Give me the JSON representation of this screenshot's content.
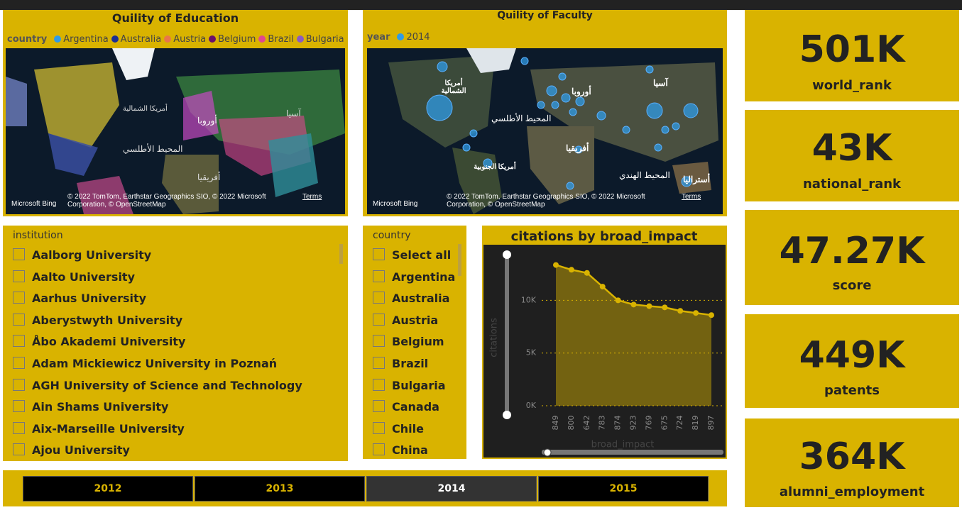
{
  "maps": [
    {
      "title": "Quility of Education",
      "legend_title": "country",
      "legend": [
        {
          "name": "Argentina",
          "color": "#2f9be6"
        },
        {
          "name": "Australia",
          "color": "#1c2f94"
        },
        {
          "name": "Austria",
          "color": "#e8764a"
        },
        {
          "name": "Belgium",
          "color": "#6b0f6b"
        },
        {
          "name": "Brazil",
          "color": "#e0488f"
        },
        {
          "name": "Bulgaria",
          "color": "#8a5cc2"
        }
      ],
      "labels": [
        "أمريكا الشمالية",
        "المحيط الأطلسي",
        "أوروبا",
        "آسيا",
        "أفريقيا"
      ],
      "attribution": "© 2022 TomTom, Earthstar Geographics SIO, © 2022 Microsoft Corporation, © OpenStreetMap",
      "terms": "Terms",
      "provider": "Microsoft Bing"
    },
    {
      "title": "Quility of Faculty",
      "legend_title": "year",
      "legend": [
        {
          "name": "2014",
          "color": "#2f9be6"
        }
      ],
      "labels": [
        "أمريكا الشمالية",
        "المحيط الأطلسي",
        "أوروبا",
        "آسيا",
        "أفريقيا",
        "أمريكا الجنوبية",
        "المحيط الهندي",
        "أستراليا"
      ],
      "attribution": "© 2022 TomTom, Earthstar Geographics SIO, © 2022 Microsoft Corporation, © OpenStreetMap",
      "terms": "Terms",
      "provider": "Microsoft Bing"
    }
  ],
  "institution_slicer": {
    "title": "institution",
    "items": [
      "Aalborg University",
      "Aalto University",
      "Aarhus University",
      "Aberystwyth University",
      "Åbo Akademi University",
      "Adam Mickiewicz University in Poznań",
      "AGH University of Science and Technology",
      "Ain Shams University",
      "Aix-Marseille University",
      "Ajou University"
    ]
  },
  "country_slicer": {
    "title": "country",
    "items": [
      "Select all",
      "Argentina",
      "Australia",
      "Austria",
      "Belgium",
      "Brazil",
      "Bulgaria",
      "Canada",
      "Chile",
      "China"
    ]
  },
  "cards": [
    {
      "value": "501K",
      "label": "world_rank"
    },
    {
      "value": "43K",
      "label": "national_rank"
    },
    {
      "value": "47.27K",
      "label": "score"
    },
    {
      "value": "449K",
      "label": "patents"
    },
    {
      "value": "364K",
      "label": "alumni_employment"
    }
  ],
  "year_buttons": {
    "items": [
      "2012",
      "2013",
      "2014",
      "2015"
    ],
    "selected": "2014"
  },
  "chart_data": {
    "type": "area",
    "title": "citations by broad_impact",
    "x_label": "broad_impact",
    "y_label": "citations",
    "categories": [
      "849",
      "800",
      "642",
      "783",
      "874",
      "923",
      "769",
      "675",
      "724",
      "819",
      "897"
    ],
    "series": [
      {
        "name": "citations",
        "color": "#d9b300",
        "values": [
          13350,
          12900,
          12600,
          11300,
          10000,
          9600,
          9450,
          9330,
          9000,
          8800,
          8600
        ]
      }
    ],
    "ylim": [
      0,
      14400
    ],
    "yticks": [
      {
        "value": 0,
        "label": "0K"
      },
      {
        "value": 5000,
        "label": "5K"
      },
      {
        "value": 10000,
        "label": "10K"
      }
    ],
    "grid": true
  }
}
